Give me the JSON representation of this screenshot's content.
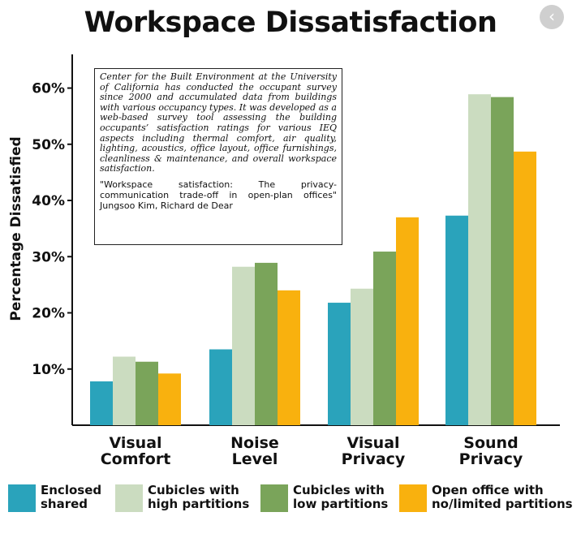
{
  "header": {
    "title": "Workspace Dissatisfaction",
    "nav_icon": "chevron-left-icon",
    "nav_glyph": "‹"
  },
  "note": {
    "body": "Center for the Built Environment at the University of California has conducted the occupant survey since 2000 and accumulated data from buildings with various occupancy types. It was developed as a web-based survey tool assessing the building occupants’ satisfaction ratings for various IEQ aspects including thermal comfort, air quality, lighting, acoustics, office layout, office furnishings, cleanliness & maintenance, and overall workspace satisfaction.",
    "citation": "\"Workspace satisfaction: The privacy-communication trade-off in open-plan offices\" Jungsoo Kim, Richard de Dear"
  },
  "chart_data": {
    "type": "bar",
    "title": "Workspace Dissatisfaction",
    "ylabel": "Percentage Dissatisfied",
    "xlabel": "",
    "ylim": [
      0,
      66
    ],
    "yticks": [
      10,
      20,
      30,
      40,
      50,
      60
    ],
    "ytick_labels": [
      "10%",
      "20%",
      "30%",
      "40%",
      "50%",
      "60%"
    ],
    "grid": false,
    "legend_position": "bottom",
    "categories": [
      [
        "Visual",
        "Comfort"
      ],
      [
        "Noise",
        "Level"
      ],
      [
        "Visual",
        "Privacy"
      ],
      [
        "Sound",
        "Privacy"
      ]
    ],
    "series": [
      {
        "name": "Enclosed shared",
        "legend_lines": [
          "Enclosed",
          "shared"
        ],
        "color": "#2aa3bb",
        "values": [
          7.8,
          13.5,
          21.8,
          37.3
        ]
      },
      {
        "name": "Cubicles with high partitions",
        "legend_lines": [
          "Cubicles with",
          "high partitions"
        ],
        "color": "#cbdcc0",
        "values": [
          12.2,
          28.2,
          24.3,
          58.9
        ]
      },
      {
        "name": "Cubicles with low partitions",
        "legend_lines": [
          "Cubicles with",
          "low partitions"
        ],
        "color": "#7aa45a",
        "values": [
          11.3,
          28.9,
          30.9,
          58.4
        ]
      },
      {
        "name": "Open office with no/limited partitions",
        "legend_lines": [
          "Open office with",
          "no/limited partitions"
        ],
        "color": "#f9b10e",
        "values": [
          9.2,
          24.0,
          37.0,
          48.7
        ]
      }
    ]
  }
}
